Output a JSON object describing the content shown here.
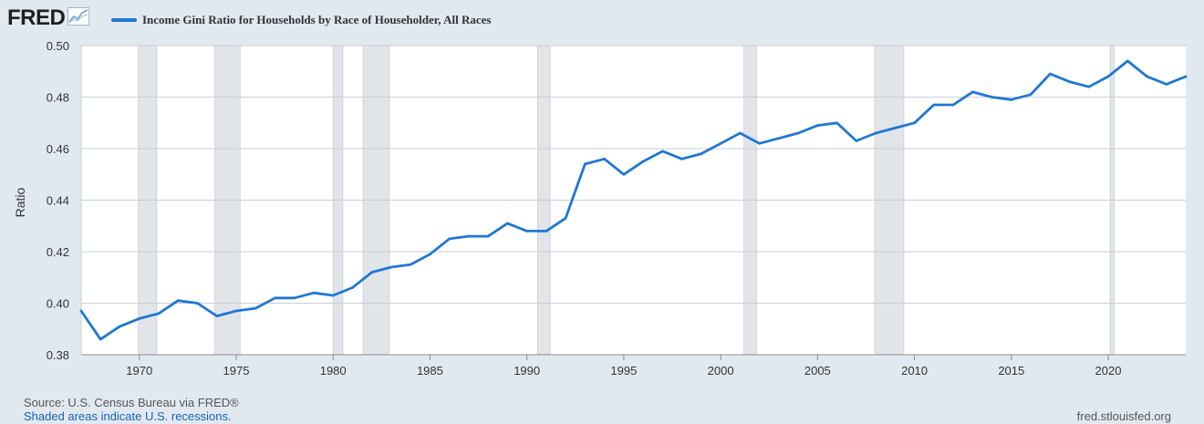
{
  "header": {
    "logo_text": "FRED",
    "logo_icon": "line-chart-icon",
    "legend_label": "Income Gini Ratio for Households by Race of Householder, All Races",
    "legend_color": "#1f77d4"
  },
  "footer": {
    "source": "Source: U.S. Census Bureau via FRED®",
    "shading_note": "Shaded areas indicate U.S. recessions.",
    "site": "fred.stlouisfed.org"
  },
  "chart_data": {
    "type": "line",
    "title": "",
    "xlabel": "",
    "ylabel": "Ratio",
    "xlim": [
      1967,
      2024
    ],
    "ylim": [
      0.38,
      0.5
    ],
    "yticks": [
      "0.38",
      "0.40",
      "0.42",
      "0.44",
      "0.46",
      "0.48",
      "0.50"
    ],
    "xticks": [
      "1970",
      "1975",
      "1980",
      "1985",
      "1990",
      "1995",
      "2000",
      "2005",
      "2010",
      "2015",
      "2020"
    ],
    "grid": true,
    "legend_position": "top-left",
    "plot_background": "#ffffff",
    "recession_color": "#e1e5ea",
    "recessions": [
      [
        1969.95,
        1970.9
      ],
      [
        1973.9,
        1975.2
      ],
      [
        1980.0,
        1980.5
      ],
      [
        1981.55,
        1982.9
      ],
      [
        1990.55,
        1991.2
      ],
      [
        2001.2,
        2001.85
      ],
      [
        2007.95,
        2009.45
      ],
      [
        2020.1,
        2020.3
      ]
    ],
    "series": [
      {
        "name": "Income Gini Ratio for Households by Race of Householder, All Races",
        "color": "#1f77d4",
        "x": [
          1967,
          1968,
          1969,
          1970,
          1971,
          1972,
          1973,
          1974,
          1975,
          1976,
          1977,
          1978,
          1979,
          1980,
          1981,
          1982,
          1983,
          1984,
          1985,
          1986,
          1987,
          1988,
          1989,
          1990,
          1991,
          1992,
          1993,
          1994,
          1995,
          1996,
          1997,
          1998,
          1999,
          2000,
          2001,
          2002,
          2003,
          2004,
          2005,
          2006,
          2007,
          2008,
          2009,
          2010,
          2011,
          2012,
          2013,
          2014,
          2015,
          2016,
          2017,
          2018,
          2019,
          2020,
          2021,
          2022,
          2023,
          2024
        ],
        "values": [
          0.397,
          0.386,
          0.391,
          0.394,
          0.396,
          0.401,
          0.4,
          0.395,
          0.397,
          0.398,
          0.402,
          0.402,
          0.404,
          0.403,
          0.406,
          0.412,
          0.414,
          0.415,
          0.419,
          0.425,
          0.426,
          0.426,
          0.431,
          0.428,
          0.428,
          0.433,
          0.454,
          0.456,
          0.45,
          0.455,
          0.459,
          0.456,
          0.458,
          0.462,
          0.466,
          0.462,
          0.464,
          0.466,
          0.469,
          0.47,
          0.463,
          0.466,
          0.468,
          0.47,
          0.477,
          0.477,
          0.482,
          0.48,
          0.479,
          0.481,
          0.489,
          0.486,
          0.484,
          0.488,
          0.494,
          0.488,
          0.485,
          0.488
        ]
      }
    ]
  }
}
